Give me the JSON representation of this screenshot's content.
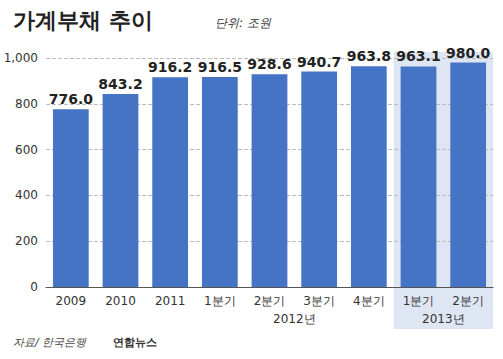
{
  "chart_data": {
    "type": "bar",
    "title": "가계부채 추이",
    "subtitle": "단위: 조원",
    "categories": [
      "2009",
      "2010",
      "2011",
      "1분기",
      "2분기",
      "3분기",
      "4분기",
      "1분기",
      "2분기"
    ],
    "category_groups": [
      {
        "label": "2012년",
        "start": 3,
        "end": 6,
        "highlighted": false
      },
      {
        "label": "2013년",
        "start": 7,
        "end": 8,
        "highlighted": true
      }
    ],
    "values": [
      776.0,
      843.2,
      916.2,
      916.5,
      928.6,
      940.7,
      963.8,
      963.1,
      980.0
    ],
    "value_labels": [
      "776.0",
      "843.2",
      "916.2",
      "916.5",
      "928.6",
      "940.7",
      "963.8",
      "963.1",
      "980.0"
    ],
    "data_labels": true,
    "color": "#4674c4",
    "ylim": [
      0,
      1000
    ],
    "yticks": [
      0,
      200,
      400,
      600,
      800,
      1000
    ],
    "grid": true,
    "source": "자료/ 한국은행",
    "credit": "연합뉴스"
  }
}
